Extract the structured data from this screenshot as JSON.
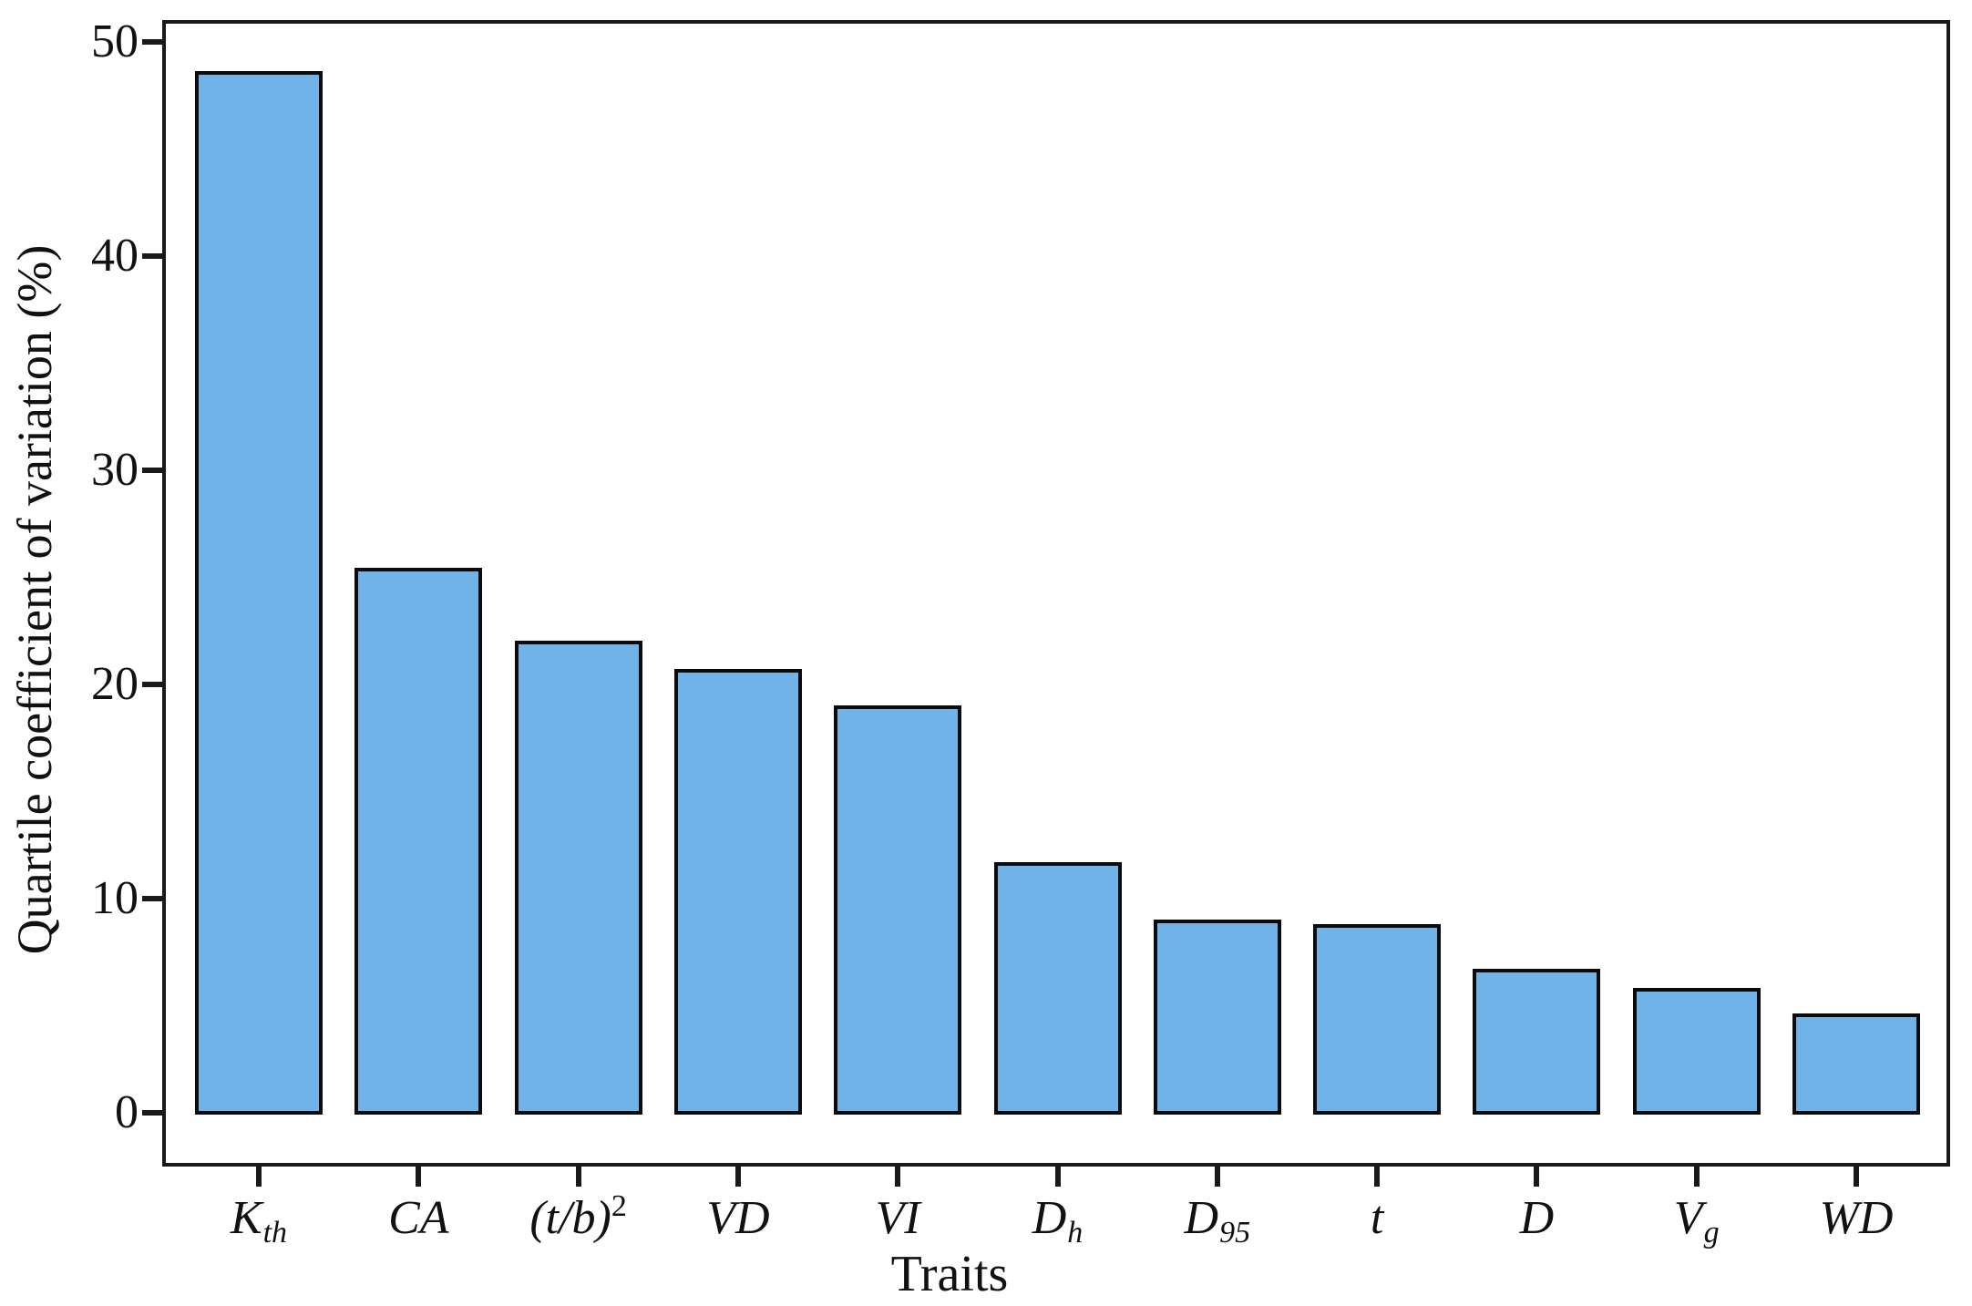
{
  "figure": {
    "background_color": "#ffffff",
    "bar_fill_color": "#6FB3E8",
    "bar_edge_color": "#0b0b0b",
    "axis_color": "#1a1a1a"
  },
  "chart_data": {
    "type": "bar",
    "title": "",
    "xlabel": "Traits",
    "ylabel": "Quartile coefficient of variation (%)",
    "categories": [
      "Kth",
      "CA",
      "(t/b)2",
      "VD",
      "VI",
      "Dh",
      "D95",
      "t",
      "D",
      "Vg",
      "WD"
    ],
    "category_labels": [
      {
        "main": "K",
        "sub": "th"
      },
      {
        "main": "CA"
      },
      {
        "main": "(t/b)",
        "sup": "2"
      },
      {
        "main": "VD"
      },
      {
        "main": "VI"
      },
      {
        "main": "D",
        "sub": "h"
      },
      {
        "main": "D",
        "sub": "95"
      },
      {
        "main": "t"
      },
      {
        "main": "D"
      },
      {
        "main": "V",
        "sub": "g"
      },
      {
        "main": "WD"
      }
    ],
    "values": [
      48.7,
      25.5,
      22.1,
      20.8,
      19.1,
      11.8,
      9.1,
      8.9,
      6.8,
      5.9,
      4.7
    ],
    "ylim": [
      -2.5,
      51
    ],
    "yticks": [
      0,
      10,
      20,
      30,
      40,
      50
    ],
    "grid": false,
    "legend": null,
    "bar_style": "single-series, light blue fill with black outline"
  }
}
